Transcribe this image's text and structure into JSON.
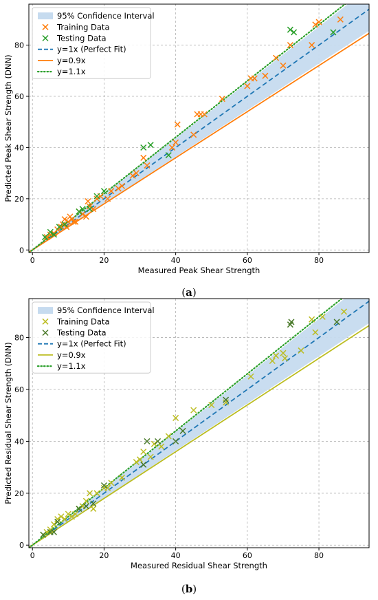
{
  "chart_data": [
    {
      "type": "scatter",
      "panel_label": "a",
      "xlabel": "Measured Peak Shear Strength",
      "ylabel": "Predicted Peak Shear Strength (DNN)",
      "xlim": [
        -1,
        94
      ],
      "ylim": [
        -1,
        96
      ],
      "xticks": [
        0,
        20,
        40,
        60,
        80
      ],
      "yticks": [
        0,
        20,
        40,
        60,
        80
      ],
      "grid": true,
      "legend_position": "top-left",
      "confidence_band": {
        "name": "95% Confidence Interval",
        "lower_slope": 0.91,
        "upper_slope": 1.09
      },
      "series": [
        {
          "name": "Training Data",
          "marker": "x",
          "color": "#ff7f0e",
          "x": [
            4,
            5,
            6,
            7,
            8,
            8.5,
            9,
            9.5,
            10,
            10.5,
            11,
            11.5,
            12,
            13,
            14,
            15,
            15.5,
            16,
            17,
            18,
            19,
            21,
            22,
            24,
            25,
            28,
            29,
            31,
            32,
            39,
            40,
            40.5,
            45,
            46,
            47,
            48,
            53,
            60,
            61,
            62,
            65,
            68,
            70,
            72,
            78,
            79,
            80,
            86
          ],
          "y": [
            5,
            6,
            6.5,
            8,
            9,
            10,
            12,
            9,
            11,
            13,
            12,
            11,
            11,
            15,
            14,
            13,
            19,
            17,
            16,
            20,
            21,
            20,
            23,
            24,
            25,
            29,
            30,
            36,
            33,
            40,
            42,
            49,
            45,
            53,
            53,
            53,
            59,
            64,
            67,
            67,
            68,
            75,
            72,
            80,
            80,
            88,
            89,
            90
          ]
        },
        {
          "name": "Testing Data",
          "marker": "x",
          "color": "#2ca02c",
          "x": [
            3.5,
            5,
            6,
            7.5,
            9,
            13,
            14,
            16,
            18,
            20,
            31,
            33,
            38,
            72,
            73,
            84
          ],
          "y": [
            5,
            7,
            6,
            9,
            10,
            15,
            16,
            16,
            21,
            23,
            40,
            41,
            37,
            86,
            85,
            85
          ]
        },
        {
          "name": "y=1x (Perfect Fit)",
          "line": "dashed",
          "color": "#1f77b4",
          "slope": 1.0
        },
        {
          "name": "y=0.9x",
          "line": "solid",
          "color": "#ff7f0e",
          "slope": 0.9
        },
        {
          "name": "y=1.1x",
          "line": "dotted",
          "color": "#2ca02c",
          "slope": 1.1
        }
      ]
    },
    {
      "type": "scatter",
      "panel_label": "b",
      "xlabel": "Measured Residual Shear Strength",
      "ylabel": "Predicted Residual Shear Strength (DNN)",
      "xlim": [
        -1,
        94
      ],
      "ylim": [
        -1,
        95
      ],
      "xticks": [
        0,
        20,
        40,
        60,
        80
      ],
      "yticks": [
        0,
        20,
        40,
        60,
        80
      ],
      "grid": true,
      "legend_position": "top-left",
      "confidence_band": {
        "name": "95% Confidence Interval",
        "lower_slope": 0.91,
        "upper_slope": 1.09
      },
      "series": [
        {
          "name": "Training Data",
          "marker": "x",
          "color": "#bcbd22",
          "x": [
            3,
            4,
            5,
            6,
            7,
            8,
            9,
            10,
            11,
            12,
            13,
            14,
            15,
            16,
            17,
            18,
            20,
            21,
            22,
            25,
            29,
            30,
            31,
            33,
            34,
            36,
            38,
            40,
            45,
            50,
            54,
            61,
            67,
            68,
            70,
            70.5,
            75,
            78,
            79,
            81,
            87
          ],
          "y": [
            4,
            5,
            6,
            8,
            10,
            11,
            10,
            12,
            11,
            12,
            14,
            15,
            17,
            20,
            14,
            20,
            22,
            22,
            24,
            26,
            32,
            33,
            36,
            34,
            39,
            38,
            42,
            49,
            52,
            54,
            55,
            65,
            71,
            73,
            74,
            72,
            75,
            87,
            82,
            88,
            90
          ]
        },
        {
          "name": "Testing Data",
          "marker": "x",
          "color": "#4a7a2a",
          "x": [
            3,
            5,
            6,
            7,
            13,
            15,
            17,
            20,
            31,
            32,
            35,
            40,
            42,
            54,
            72,
            72.3,
            85
          ],
          "y": [
            4,
            5,
            5,
            9,
            14,
            15,
            16,
            23,
            31,
            40,
            40,
            40,
            44,
            56,
            85,
            86,
            86
          ]
        },
        {
          "name": "y=1x (Perfect Fit)",
          "line": "dashed",
          "color": "#1f77b4",
          "slope": 1.0
        },
        {
          "name": "y=0.9x",
          "line": "solid",
          "color": "#bcbd22",
          "slope": 0.9
        },
        {
          "name": "y=1.1x",
          "line": "dotted",
          "color": "#2ca02c",
          "slope": 1.1
        }
      ]
    }
  ],
  "captions": [
    "(a)",
    "(b)"
  ],
  "band_color": "#c6dbef"
}
